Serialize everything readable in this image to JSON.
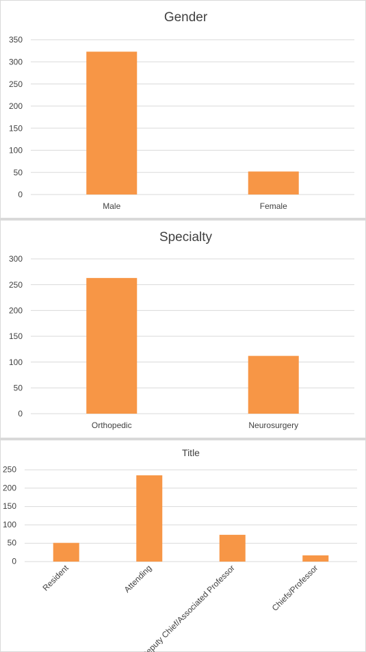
{
  "chart_data": [
    {
      "type": "bar",
      "title": "Gender",
      "categories": [
        "Male",
        "Female"
      ],
      "values": [
        323,
        52
      ],
      "ylim": [
        0,
        350
      ],
      "yticks": [
        0,
        50,
        100,
        150,
        200,
        250,
        300,
        350
      ],
      "grid": true,
      "color": "#f79646"
    },
    {
      "type": "bar",
      "title": "Specialty",
      "categories": [
        "Orthopedic",
        "Neurosurgery"
      ],
      "values": [
        263,
        112
      ],
      "ylim": [
        0,
        300
      ],
      "yticks": [
        0,
        50,
        100,
        150,
        200,
        250,
        300
      ],
      "grid": true,
      "color": "#f79646"
    },
    {
      "type": "bar",
      "title": "Title",
      "categories": [
        "Resident",
        "Attending",
        "Deputy Chief/Associated Professor",
        "Chiefs/Professor"
      ],
      "values": [
        51,
        235,
        73,
        17
      ],
      "ylim": [
        0,
        250
      ],
      "yticks": [
        0,
        50,
        100,
        150,
        200,
        250
      ],
      "grid": true,
      "color": "#f79646"
    }
  ]
}
